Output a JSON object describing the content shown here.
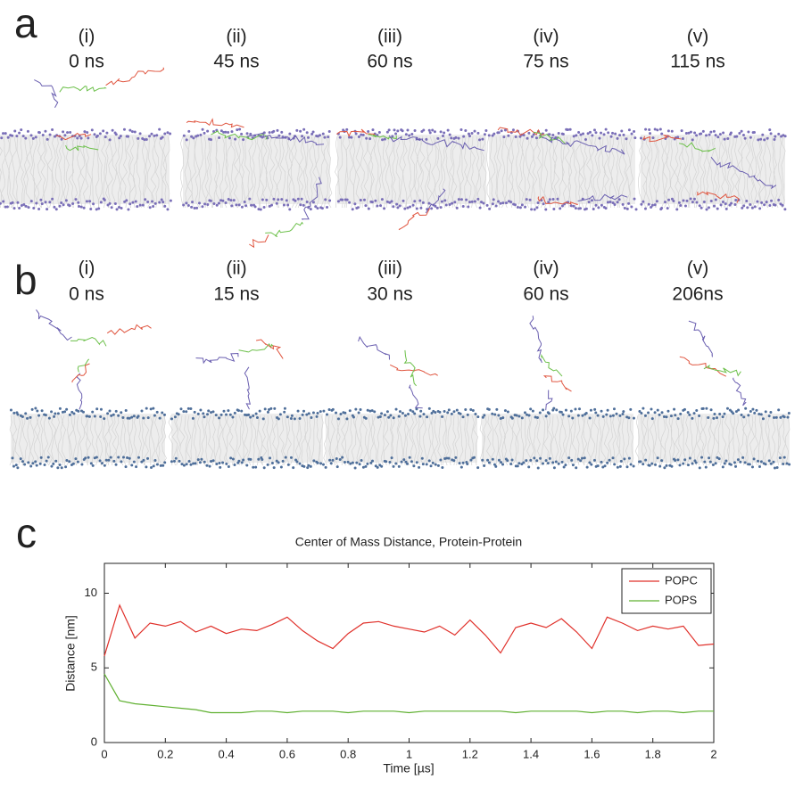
{
  "panels": [
    {
      "label": "a",
      "snapshots": [
        {
          "index": "(i)",
          "time": "0 ns"
        },
        {
          "index": "(ii)",
          "time": "45 ns"
        },
        {
          "index": "(iii)",
          "time": "60 ns"
        },
        {
          "index": "(iv)",
          "time": "75 ns"
        },
        {
          "index": "(v)",
          "time": "115 ns"
        }
      ]
    },
    {
      "label": "b",
      "snapshots": [
        {
          "index": "(i)",
          "time": "0 ns"
        },
        {
          "index": "(ii)",
          "time": "15 ns"
        },
        {
          "index": "(iii)",
          "time": "30 ns"
        },
        {
          "index": "(iv)",
          "time": "60 ns"
        },
        {
          "index": "(v)",
          "time": "206ns"
        }
      ]
    }
  ],
  "chart_label": "c",
  "chart_data": {
    "type": "line",
    "title": "Center of Mass Distance, Protein-Protein",
    "x_label": "Time [µs]",
    "y_label": "Distance [nm]",
    "x": [
      0,
      0.05,
      0.1,
      0.15,
      0.2,
      0.25,
      0.3,
      0.35,
      0.4,
      0.45,
      0.5,
      0.55,
      0.6,
      0.65,
      0.7,
      0.75,
      0.8,
      0.85,
      0.9,
      0.95,
      1,
      1.05,
      1.1,
      1.15,
      1.2,
      1.25,
      1.3,
      1.35,
      1.4,
      1.45,
      1.5,
      1.55,
      1.6,
      1.65,
      1.7,
      1.75,
      1.8,
      1.85,
      1.9,
      1.95,
      2
    ],
    "series": [
      {
        "name": "POPC",
        "color": "#e0302a",
        "values": [
          5.8,
          9.2,
          7.0,
          8.0,
          7.8,
          8.1,
          7.4,
          7.8,
          7.3,
          7.6,
          7.5,
          7.9,
          8.4,
          7.5,
          6.8,
          6.3,
          7.3,
          8.0,
          8.1,
          7.8,
          7.6,
          7.4,
          7.8,
          7.2,
          8.2,
          7.2,
          6.0,
          7.7,
          8.0,
          7.7,
          8.3,
          7.4,
          6.3,
          8.4,
          8.0,
          7.5,
          7.8,
          7.6,
          7.8,
          6.5,
          6.6
        ]
      },
      {
        "name": "POPS",
        "color": "#5fb030",
        "values": [
          4.6,
          2.8,
          2.6,
          2.5,
          2.4,
          2.3,
          2.2,
          2.0,
          2.0,
          2.0,
          2.1,
          2.1,
          2.0,
          2.1,
          2.1,
          2.1,
          2.0,
          2.1,
          2.1,
          2.1,
          2.0,
          2.1,
          2.1,
          2.1,
          2.1,
          2.1,
          2.1,
          2.0,
          2.1,
          2.1,
          2.1,
          2.1,
          2.0,
          2.1,
          2.1,
          2.0,
          2.1,
          2.1,
          2.0,
          2.1,
          2.1
        ]
      }
    ],
    "xlim": [
      0,
      2
    ],
    "ylim": [
      0,
      12
    ],
    "xticks": [
      0,
      0.2,
      0.4,
      0.6,
      0.8,
      1,
      1.2,
      1.4,
      1.6,
      1.8,
      2
    ],
    "yticks": [
      0,
      5,
      10
    ],
    "legend": "upper right"
  }
}
